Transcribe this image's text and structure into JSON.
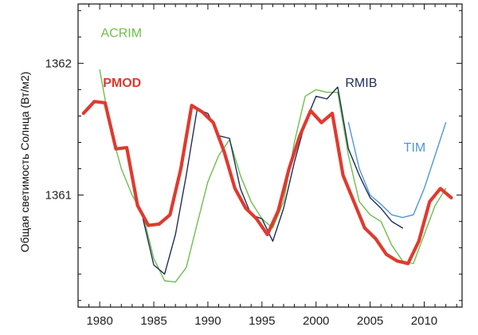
{
  "chart_data": {
    "type": "line",
    "title": "",
    "xlabel": "",
    "ylabel": "Общая светимость Солнца (Вт/м2)",
    "xlim": [
      1978,
      2013.5
    ],
    "ylim": [
      1360.15,
      1362.45
    ],
    "x_ticks": [
      1980,
      1985,
      1990,
      1995,
      2000,
      2005,
      2010
    ],
    "x_tick_labels": [
      "1980",
      "1985",
      "1990",
      "1995",
      "2000",
      "2005",
      "2010"
    ],
    "y_ticks": [
      1361,
      1362
    ],
    "y_tick_labels": [
      "1361",
      "1362"
    ],
    "grid": false,
    "series": [
      {
        "name": "ACRIM",
        "color": "#6fbf4a",
        "x": [
          1980,
          1981,
          1982,
          1983,
          1984,
          1985,
          1986,
          1987,
          1988,
          1989,
          1990,
          1991,
          1992,
          1993,
          1994,
          1995,
          1996,
          1997,
          1998,
          1999,
          2000,
          2001,
          2002,
          2003,
          2004,
          2005,
          2006,
          2007,
          2008,
          2009,
          2010,
          2011,
          2012
        ],
        "y": [
          1361.95,
          1361.5,
          1361.2,
          1361.0,
          1360.85,
          1360.52,
          1360.35,
          1360.34,
          1360.45,
          1360.78,
          1361.1,
          1361.3,
          1361.42,
          1361.15,
          1360.95,
          1360.82,
          1360.75,
          1360.95,
          1361.4,
          1361.75,
          1361.8,
          1361.78,
          1361.78,
          1361.3,
          1360.95,
          1360.85,
          1360.8,
          1360.62,
          1360.5,
          1360.48,
          1360.7,
          1360.92,
          1361.05
        ]
      },
      {
        "name": "PMOD",
        "color": "#e03a2f",
        "x": [
          1978.5,
          1979.5,
          1980.5,
          1981.5,
          1982.5,
          1983.5,
          1984.5,
          1985.5,
          1986.5,
          1987.5,
          1988.5,
          1989.5,
          1990.5,
          1991.5,
          1992.5,
          1993.5,
          1994.5,
          1995.5,
          1996.5,
          1997.5,
          1998.5,
          1999.5,
          2000.5,
          2001.5,
          2002.5,
          2003.5,
          2004.5,
          2005.5,
          2006.5,
          2007.5,
          2008.5,
          2009.5,
          2010.5,
          2011.5,
          2012.5
        ],
        "y": [
          1361.62,
          1361.71,
          1361.7,
          1361.35,
          1361.36,
          1360.92,
          1360.77,
          1360.78,
          1360.85,
          1361.2,
          1361.68,
          1361.63,
          1361.55,
          1361.33,
          1361.05,
          1360.9,
          1360.82,
          1360.7,
          1360.88,
          1361.2,
          1361.45,
          1361.64,
          1361.55,
          1361.62,
          1361.15,
          1360.95,
          1360.75,
          1360.67,
          1360.55,
          1360.5,
          1360.48,
          1360.65,
          1360.95,
          1361.05,
          1360.98
        ]
      },
      {
        "name": "RMIB",
        "color": "#1f2e5c",
        "x": [
          1984,
          1985,
          1986,
          1987,
          1988,
          1989,
          1990,
          1991,
          1992,
          1993,
          1994,
          1995,
          1996,
          1997,
          1998,
          1999,
          2000,
          2001,
          2002,
          2003,
          2004,
          2005,
          2006,
          2007,
          2008
        ],
        "y": [
          1360.82,
          1360.47,
          1360.4,
          1360.7,
          1361.15,
          1361.65,
          1361.62,
          1361.45,
          1361.43,
          1361.05,
          1360.85,
          1360.82,
          1360.65,
          1360.9,
          1361.25,
          1361.55,
          1361.75,
          1361.73,
          1361.82,
          1361.35,
          1361.15,
          1360.98,
          1360.9,
          1360.8,
          1360.75
        ]
      },
      {
        "name": "TIM",
        "color": "#4f97d8",
        "x": [
          2003,
          2004,
          2005,
          2006,
          2007,
          2008,
          2009,
          2010,
          2011,
          2012
        ],
        "y": [
          1361.55,
          1361.2,
          1361.0,
          1360.93,
          1360.85,
          1360.83,
          1360.85,
          1361.05,
          1361.3,
          1361.55
        ]
      }
    ],
    "annotations": [
      {
        "text": "ACRIM",
        "series": "ACRIM",
        "color": "#6fbf4a",
        "x": 1980.1,
        "y": 1362.2
      },
      {
        "text": "PMOD",
        "series": "PMOD",
        "color": "#e03a2f",
        "x": 1980.3,
        "y": 1361.82
      },
      {
        "text": "RMIB",
        "series": "RMIB",
        "color": "#1f2e5c",
        "x": 2002.7,
        "y": 1361.82
      },
      {
        "text": "TIM",
        "series": "TIM",
        "color": "#4f97d8",
        "x": 2008.1,
        "y": 1361.33
      }
    ]
  }
}
